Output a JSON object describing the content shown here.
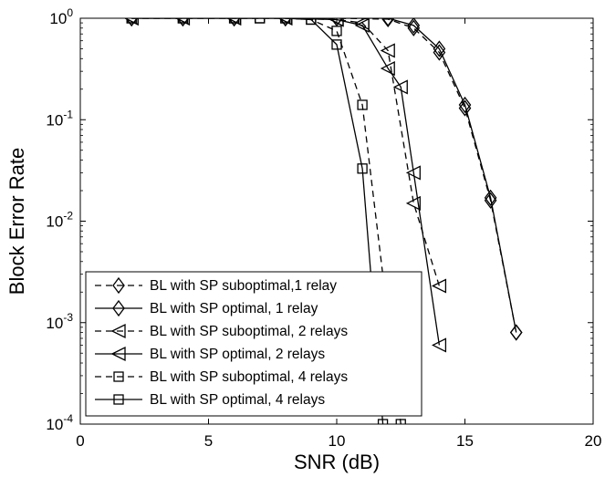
{
  "chart_data": {
    "type": "line",
    "title": "",
    "xlabel": "SNR (dB)",
    "ylabel": "Block Error Rate",
    "xlim": [
      0,
      20
    ],
    "ylim": [
      0.0001,
      1
    ],
    "yscale": "log",
    "grid": false,
    "legend_position": "bottom-left",
    "x_ticks": [
      0,
      5,
      10,
      15,
      20
    ],
    "x_tick_labels": [
      "0",
      "5",
      "10",
      "15",
      "20"
    ],
    "y_ticks": [
      0.0001,
      0.001,
      0.01,
      0.1,
      1
    ],
    "y_tick_labels": [
      {
        "base": "10",
        "exp": "-4"
      },
      {
        "base": "10",
        "exp": "-3"
      },
      {
        "base": "10",
        "exp": "-2"
      },
      {
        "base": "10",
        "exp": "-1"
      },
      {
        "base": "10",
        "exp": "0"
      }
    ],
    "series": [
      {
        "name": "BL with SP suboptimal,1 relay",
        "marker": "diamond",
        "line": "dashed",
        "x": [
          2,
          4,
          6,
          8,
          10,
          12,
          13,
          14,
          15,
          16,
          17
        ],
        "y": [
          1,
          1,
          1,
          1,
          1,
          0.98,
          0.8,
          0.46,
          0.13,
          0.016,
          0.0008
        ]
      },
      {
        "name": "BL with SP optimal, 1 relay",
        "marker": "diamond",
        "line": "solid",
        "x": [
          2,
          4,
          6,
          8,
          10,
          12,
          13,
          14,
          15,
          16,
          17
        ],
        "y": [
          1,
          1,
          1,
          1,
          1,
          1,
          0.85,
          0.5,
          0.14,
          0.017,
          0.0008
        ]
      },
      {
        "name": "BL with SP suboptimal, 2 relays",
        "marker": "triangle-left",
        "line": "dashed",
        "x": [
          2,
          4,
          6,
          8,
          10,
          11,
          12,
          13,
          14
        ],
        "y": [
          1,
          1,
          1,
          1,
          0.97,
          0.9,
          0.48,
          0.015,
          0.0023
        ]
      },
      {
        "name": "BL with SP optimal, 2 relays",
        "marker": "triangle-left",
        "line": "solid",
        "x": [
          2,
          4,
          6,
          8,
          10,
          11,
          12,
          12.5,
          13,
          14
        ],
        "y": [
          1,
          1,
          1,
          1,
          0.97,
          0.85,
          0.32,
          0.21,
          0.03,
          0.0006
        ]
      },
      {
        "name": "BL with SP suboptimal, 4 relays",
        "marker": "square",
        "line": "dashed",
        "x": [
          2,
          4,
          6,
          7,
          8,
          9,
          10,
          11,
          12.5
        ],
        "y": [
          1,
          1,
          1,
          1,
          1,
          0.97,
          0.75,
          0.14,
          0.0001
        ]
      },
      {
        "name": "BL with SP optimal, 4 relays",
        "marker": "square",
        "line": "solid",
        "x": [
          2,
          4,
          6,
          7,
          8,
          9,
          10,
          11,
          11.8
        ],
        "y": [
          1,
          1,
          1,
          1,
          1,
          0.97,
          0.55,
          0.033,
          0.0001
        ]
      }
    ]
  }
}
